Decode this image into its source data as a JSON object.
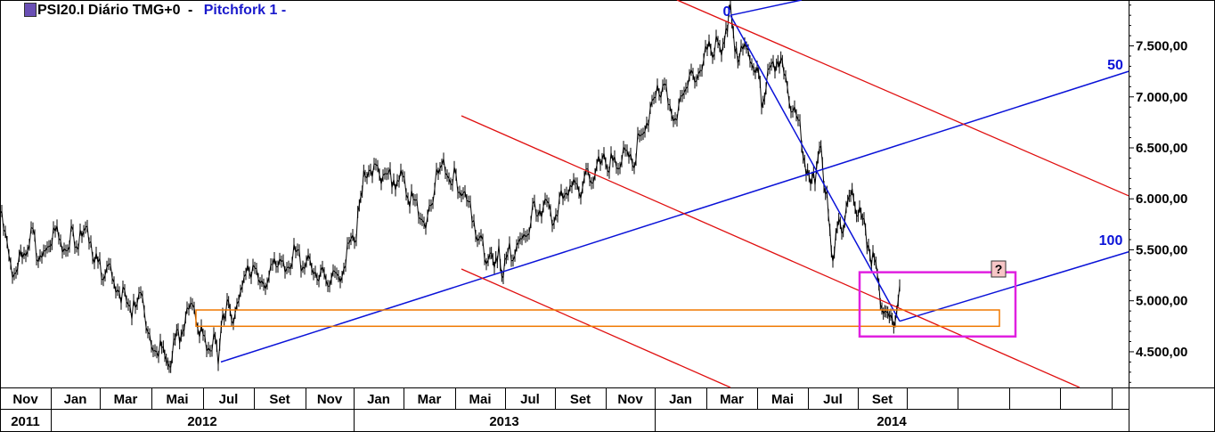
{
  "header": {
    "symbol_label": "PSI20.I Diário TMG+0",
    "separator": "-",
    "tool_label": "Pitchfork 1",
    "tool_suffix": "-"
  },
  "chart_data": {
    "type": "line",
    "title": "PSI20.I Diário TMG+0",
    "yaxis": {
      "ticks": [
        4500,
        5000,
        5500,
        6000,
        6500,
        7000,
        7500
      ],
      "tick_labels": [
        "4.500,00",
        "5.000,00",
        "5.500,00",
        "6.000,00",
        "6.500,00",
        "7.000,00",
        "7.500,00"
      ],
      "ylim": [
        4150,
        7950
      ],
      "position": "right"
    },
    "xaxis": {
      "months": [
        "Nov",
        "Jan",
        "Mar",
        "Mai",
        "Jul",
        "Set",
        "Nov",
        "Jan",
        "Mar",
        "Mai",
        "Jul",
        "Set",
        "Nov",
        "Jan",
        "Mar",
        "Mai",
        "Jul",
        "Set"
      ],
      "years": [
        "2011",
        "2012",
        "2013",
        "2014"
      ]
    },
    "series": [
      {
        "style": "daily-bars",
        "x": [
          0,
          10,
          18,
          25,
          35,
          45,
          55,
          60,
          70,
          80,
          90,
          100,
          110,
          120,
          130,
          140,
          150,
          160,
          170,
          180,
          185,
          190,
          195,
          200,
          205,
          210,
          220,
          230,
          240,
          245,
          250,
          255,
          260,
          270,
          280,
          290,
          300,
          310,
          320,
          330,
          340,
          350,
          360,
          370,
          380,
          390,
          400,
          405,
          410,
          420,
          430,
          440,
          450,
          460,
          470,
          480,
          490,
          500,
          510,
          520,
          530,
          540,
          550,
          555,
          560,
          565,
          570,
          580,
          590,
          600,
          610,
          620,
          630,
          640,
          650,
          660,
          670,
          680,
          690,
          700,
          710,
          720,
          730,
          740,
          750,
          760,
          770,
          780,
          790,
          800,
          810,
          815,
          820,
          825,
          830,
          840,
          850,
          855,
          860,
          870,
          875,
          880,
          890,
          900,
          905,
          910,
          915,
          920,
          925,
          930,
          935,
          940,
          945,
          950,
          955,
          960,
          965,
          970,
          975,
          980,
          985,
          990,
          995,
          1000,
          1005,
          1010
        ],
        "values": [
          5850,
          5450,
          5200,
          5500,
          5650,
          5350,
          5550,
          5700,
          5550,
          5650,
          5600,
          5650,
          5350,
          5300,
          5150,
          5050,
          4900,
          5050,
          4550,
          4500,
          4450,
          4400,
          4550,
          4650,
          4750,
          4900,
          4850,
          4550,
          4600,
          4450,
          4900,
          4900,
          4850,
          5050,
          5350,
          5250,
          5150,
          5400,
          5300,
          5450,
          5350,
          5350,
          5250,
          5150,
          5250,
          5500,
          5700,
          5950,
          6300,
          6300,
          6250,
          6200,
          6200,
          6000,
          5850,
          5750,
          6200,
          6300,
          6200,
          6000,
          5850,
          5600,
          5400,
          5250,
          5550,
          5200,
          5450,
          5500,
          5650,
          5900,
          5900,
          5850,
          6000,
          6100,
          6100,
          6200,
          6300,
          6350,
          6350,
          6400,
          6350,
          6650,
          6850,
          7050,
          7000,
          6750,
          7100,
          7250,
          7350,
          7500,
          7450,
          7700,
          7800,
          7550,
          7400,
          7500,
          7250,
          6950,
          7150,
          7350,
          7400,
          7200,
          6900,
          6600,
          6300,
          6100,
          6200,
          6550,
          6100,
          5900,
          5350,
          5650,
          5750,
          5850,
          6000,
          5950,
          5850,
          5750,
          5550,
          5400,
          5200,
          5000,
          4850,
          4750,
          4900,
          5150
        ]
      }
    ],
    "annotations": {
      "pitchfork": {
        "handle_points": [
          [
            820,
            7800
          ],
          [
            248,
            4400
          ],
          [
            1010,
            4800
          ]
        ],
        "levels": [
          "0",
          "50",
          "100"
        ]
      },
      "zones": [
        {
          "type": "rectangle",
          "color": "#f07800",
          "x": [
            220,
            1122
          ],
          "y": [
            4750,
            4910
          ]
        },
        {
          "type": "rectangle",
          "color": "#e020e0",
          "x": [
            965,
            1140
          ],
          "y": [
            4650,
            5280
          ]
        }
      ],
      "question_marker": "?"
    },
    "grid": false,
    "colors": {
      "price": "#000000",
      "median": "#0a12d8",
      "tines": "#e01010",
      "zone1": "#f07800",
      "zone2": "#e020e0",
      "marker_bg": "#f7c6c6"
    }
  }
}
